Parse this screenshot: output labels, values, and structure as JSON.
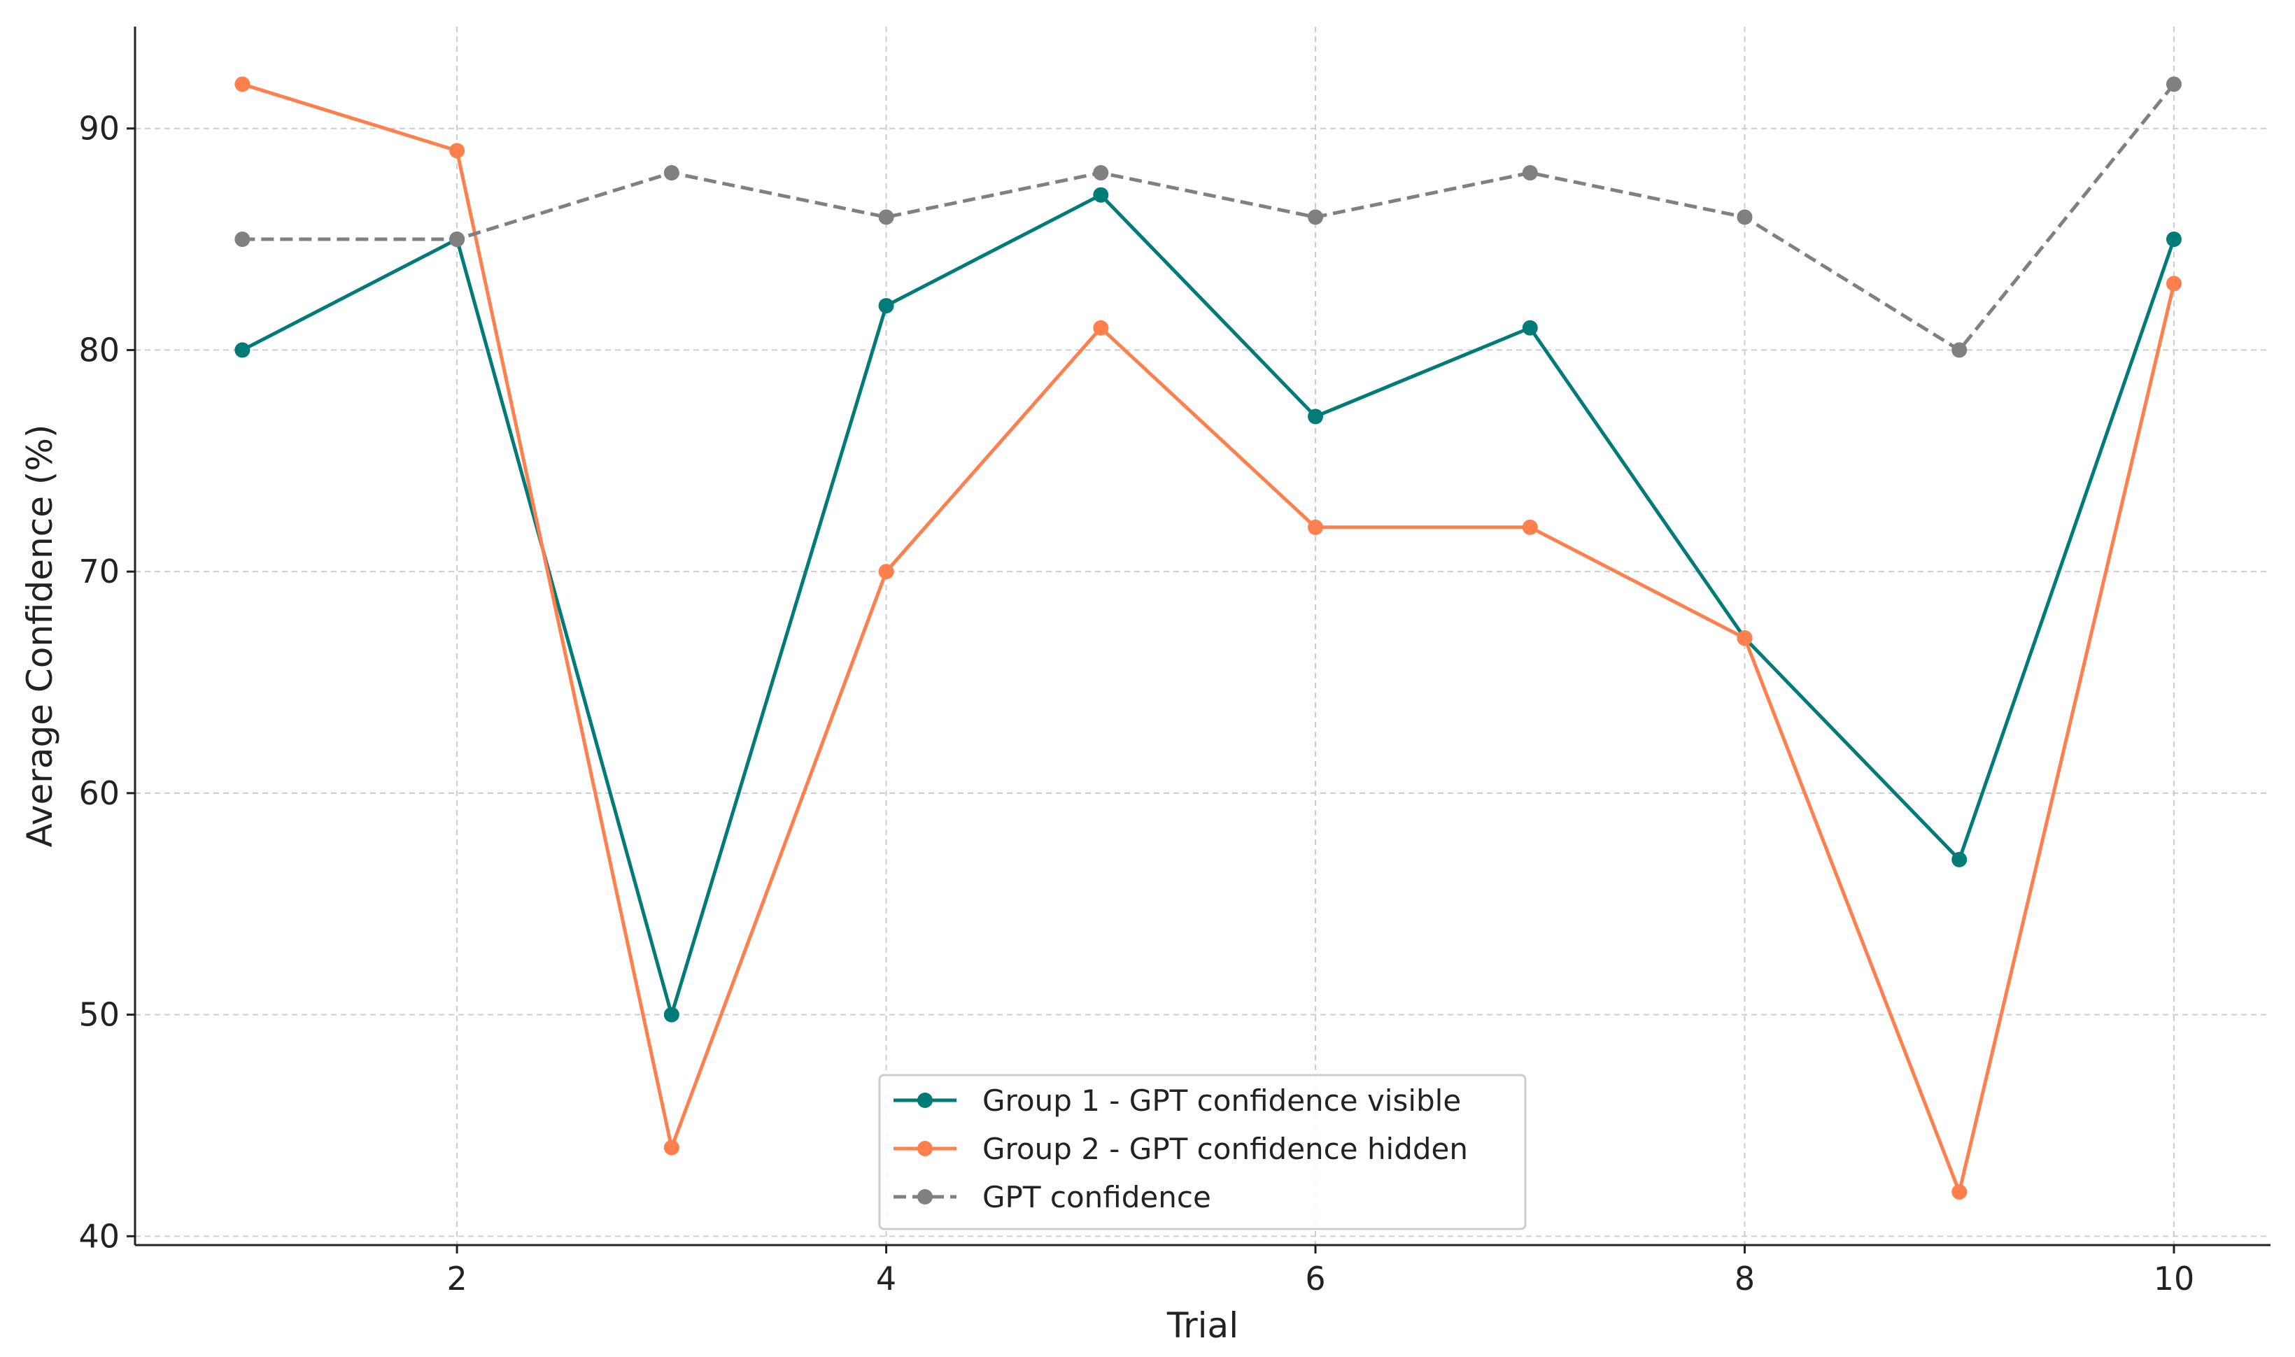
{
  "chart_data": {
    "type": "line",
    "title": "",
    "xlabel": "Trial",
    "ylabel": "Average Confidence (%)",
    "x": [
      1,
      2,
      3,
      4,
      5,
      6,
      7,
      8,
      9,
      10
    ],
    "xlim": [
      0.5,
      10.45
    ],
    "ylim": [
      39.6,
      94.6
    ],
    "xticks": [
      2,
      4,
      6,
      8,
      10
    ],
    "yticks": [
      40,
      50,
      60,
      70,
      80,
      90
    ],
    "grid": true,
    "legend_position": "bottom-center",
    "series": [
      {
        "name": "Group 1 - GPT confidence visible",
        "color": "#007b78",
        "style": "solid",
        "values": [
          80,
          85,
          50,
          82,
          87,
          77,
          81,
          67,
          57,
          85
        ]
      },
      {
        "name": "Group 2 - GPT confidence hidden",
        "color": "#ff7f4d",
        "style": "solid",
        "values": [
          92,
          89,
          44,
          70,
          81,
          72,
          72,
          67,
          42,
          83
        ]
      },
      {
        "name": "GPT confidence",
        "color": "#808080",
        "style": "dashed",
        "values": [
          85,
          85,
          88,
          86,
          88,
          86,
          88,
          86,
          80,
          92
        ]
      }
    ]
  }
}
